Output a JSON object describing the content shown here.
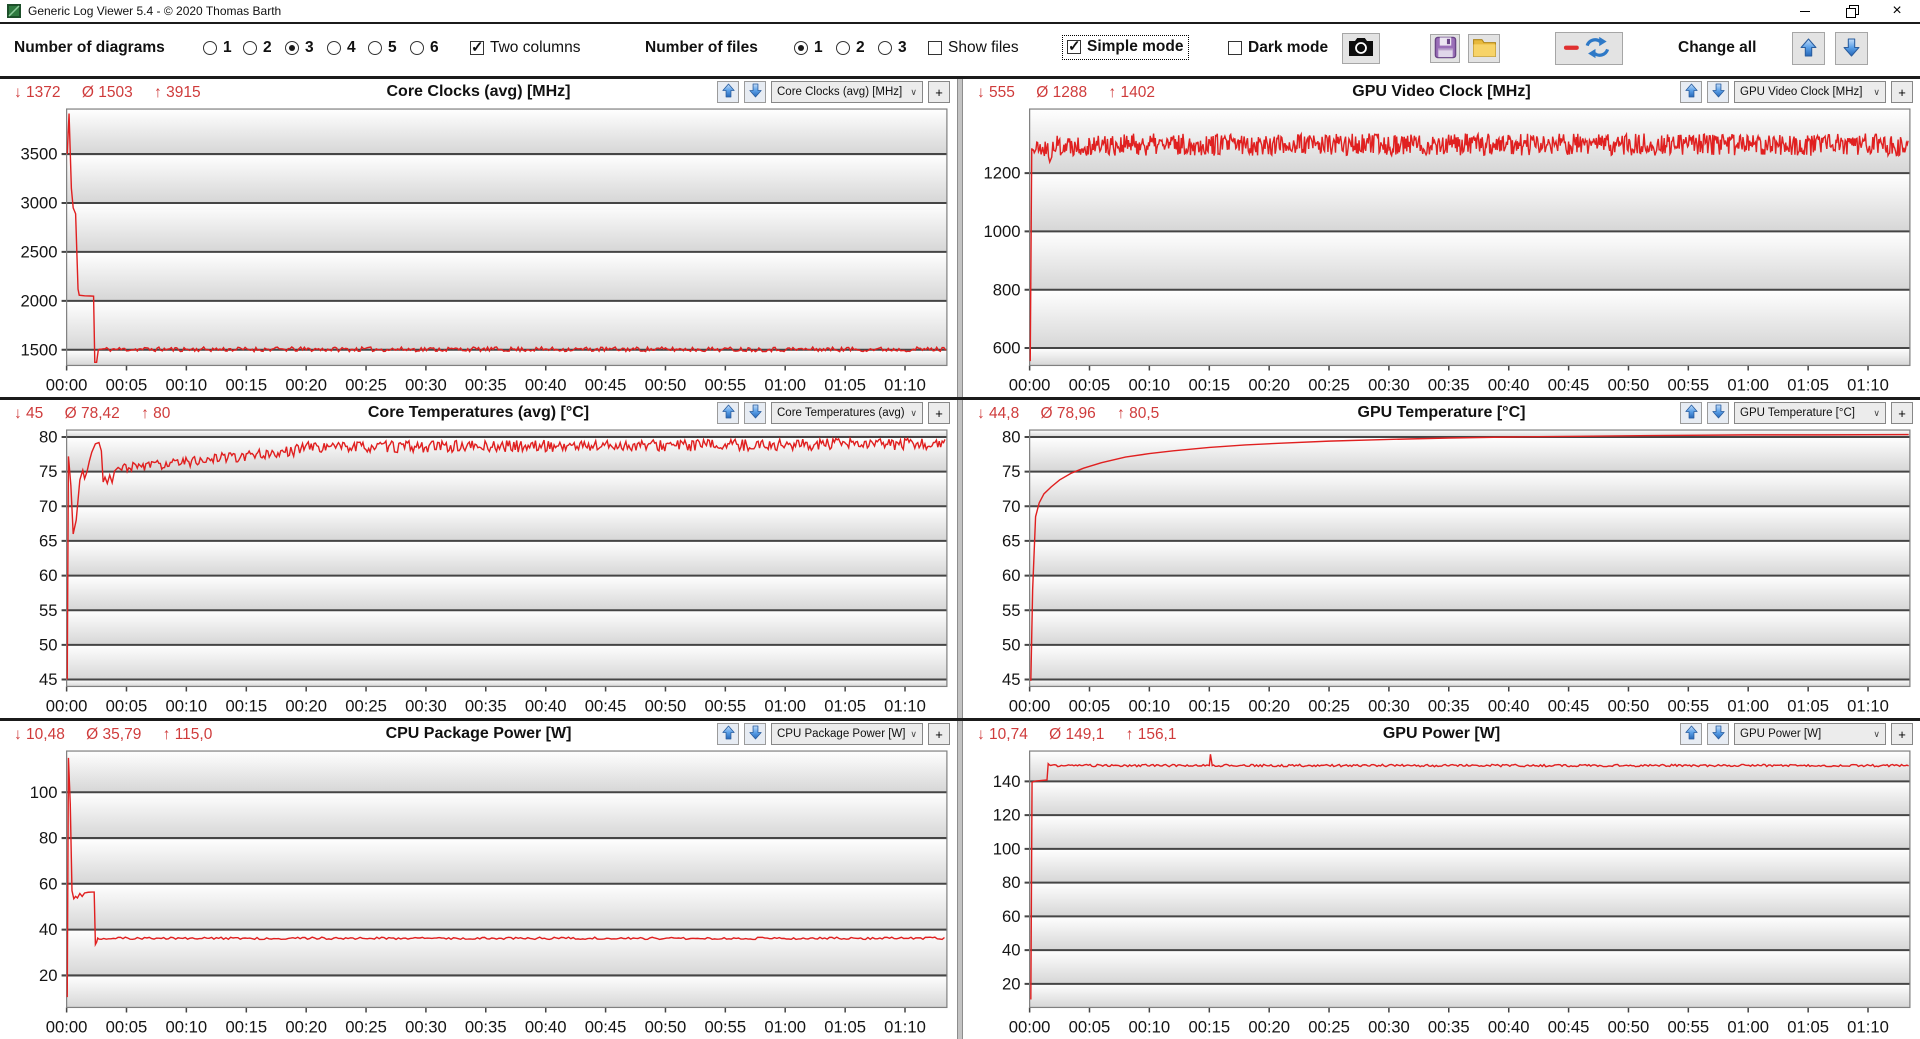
{
  "window": {
    "title": "Generic Log Viewer 5.4 - © 2020 Thomas Barth"
  },
  "icons": {
    "chevron_down": "∨",
    "plus": "+",
    "close": "×"
  },
  "colors": {
    "stat_red": "#cf3b3b",
    "series_red": "#e02020",
    "gridline": "#454545",
    "band_gray": "#d6d6d6",
    "arrow_blue": "#2e79c7",
    "separator": "#1b1b1b"
  },
  "toolbar": {
    "diagrams_label": "Number of diagrams",
    "diagram_options": [
      "1",
      "2",
      "3",
      "4",
      "5",
      "6"
    ],
    "diagrams_selected": "3",
    "two_columns_label": "Two columns",
    "two_columns_checked": true,
    "files_label": "Number of files",
    "file_options": [
      "1",
      "2",
      "3"
    ],
    "files_selected": "1",
    "show_files_label": "Show files",
    "show_files_checked": false,
    "simple_mode_label": "Simple mode",
    "simple_mode_checked": true,
    "dark_mode_label": "Dark mode",
    "dark_mode_checked": false,
    "change_all_label": "Change all"
  },
  "time_labels": [
    "00:00",
    "00:05",
    "00:10",
    "00:15",
    "00:20",
    "00:25",
    "00:30",
    "00:35",
    "00:40",
    "00:45",
    "00:50",
    "00:55",
    "01:00",
    "01:05",
    "01:10"
  ],
  "chart_data": [
    {
      "type": "line",
      "title": "Core Clocks (avg) [MHz]",
      "dropdown": "Core Clocks (avg) [MHz]",
      "stats": {
        "min": "↓ 1372",
        "avg": "Ø 1503",
        "max": "↑ 3915"
      },
      "series_color": "#e02020",
      "xlim": [
        0,
        73.5
      ],
      "ylim": [
        1340,
        3960
      ],
      "yticks": [
        1500,
        2000,
        2500,
        3000,
        3500
      ],
      "segments": [
        {
          "pts": [
            [
              0.05,
              3500
            ],
            [
              0.2,
              3915
            ],
            [
              0.4,
              3150
            ],
            [
              0.55,
              2950
            ],
            [
              0.75,
              2890
            ],
            [
              0.95,
              2120
            ],
            [
              1.05,
              2058
            ],
            [
              1.5,
              2052
            ],
            [
              2.0,
              2050
            ],
            [
              2.25,
              2048
            ],
            [
              2.35,
              1372
            ],
            [
              2.5,
              1372
            ],
            [
              2.65,
              1500
            ]
          ]
        },
        {
          "noise": {
            "from": 2.75,
            "to": 73.4,
            "step": 0.15,
            "base": 1505,
            "amp": 24,
            "seed": 11
          }
        }
      ]
    },
    {
      "type": "line",
      "title": "GPU Video Clock [MHz]",
      "dropdown": "GPU Video Clock [MHz]",
      "stats": {
        "min": "↓ 555",
        "avg": "Ø 1288",
        "max": "↑ 1402"
      },
      "series_color": "#e02020",
      "xlim": [
        0,
        73.5
      ],
      "ylim": [
        540,
        1420
      ],
      "yticks": [
        600,
        800,
        1000,
        1200
      ],
      "segments": [
        {
          "pts": [
            [
              0.05,
              555
            ],
            [
              0.18,
              1285
            ]
          ]
        },
        {
          "noise": {
            "from": 0.25,
            "to": 1.6,
            "step": 0.07,
            "base": 1283,
            "amp": 30,
            "seed": 21
          }
        },
        {
          "pts": [
            [
              1.68,
              1238
            ],
            [
              1.85,
              1255
            ]
          ]
        },
        {
          "noise": {
            "from": 1.95,
            "to": 73.4,
            "step": 0.07,
            "base": 1298,
            "amp": 38,
            "seed": 22
          }
        }
      ]
    },
    {
      "type": "line",
      "title": "Core Temperatures (avg) [°C]",
      "dropdown": "Core Temperatures (avg) [°C]",
      "stats": {
        "min": "↓ 45",
        "avg": "Ø 78,42",
        "max": "↑ 80"
      },
      "series_color": "#e02020",
      "xlim": [
        0,
        73.5
      ],
      "ylim": [
        44,
        81
      ],
      "yticks": [
        45,
        50,
        55,
        60,
        65,
        70,
        75,
        80
      ],
      "segments": [
        {
          "pts": [
            [
              0.05,
              45
            ],
            [
              0.15,
              77.2
            ],
            [
              0.35,
              73
            ],
            [
              0.55,
              66
            ],
            [
              0.8,
              68
            ],
            [
              1.1,
              73.8
            ],
            [
              1.35,
              75.2
            ],
            [
              1.5,
              74
            ],
            [
              1.7,
              75
            ],
            [
              1.9,
              76.5
            ],
            [
              2.1,
              77.8
            ],
            [
              2.4,
              79
            ],
            [
              2.7,
              79.2
            ],
            [
              2.9,
              78
            ],
            [
              3.05,
              73.5
            ],
            [
              3.2,
              74.2
            ],
            [
              3.4,
              73.3
            ],
            [
              3.6,
              74.5
            ],
            [
              3.8,
              73.4
            ],
            [
              4.0,
              75.1
            ],
            [
              4.3,
              75.6
            ],
            [
              4.6,
              75.2
            ]
          ]
        },
        {
          "noise": {
            "from": 4.7,
            "to": 9.5,
            "step": 0.12,
            "base_start": 75.6,
            "base_end": 76.2,
            "amp": 0.7,
            "seed": 31
          }
        },
        {
          "noise": {
            "from": 9.6,
            "to": 19.0,
            "step": 0.12,
            "base_start": 76.4,
            "base_end": 77.9,
            "amp": 0.8,
            "seed": 32
          }
        },
        {
          "noise": {
            "from": 19.1,
            "to": 73.4,
            "step": 0.12,
            "base_start": 78.5,
            "base_end": 79.0,
            "amp": 0.85,
            "seed": 33
          }
        }
      ]
    },
    {
      "type": "line",
      "title": "GPU Temperature [°C]",
      "dropdown": "GPU Temperature [°C]",
      "stats": {
        "min": "↓ 44,8",
        "avg": "Ø 78,96",
        "max": "↑ 80,5"
      },
      "series_color": "#e02020",
      "xlim": [
        0,
        73.5
      ],
      "ylim": [
        44,
        81
      ],
      "yticks": [
        45,
        50,
        55,
        60,
        65,
        70,
        75,
        80
      ],
      "segments": [
        {
          "pts": [
            [
              0.1,
              44.8
            ],
            [
              0.25,
              58
            ],
            [
              0.5,
              68.5
            ],
            [
              0.8,
              70.5
            ],
            [
              1.2,
              71.8
            ],
            [
              1.8,
              72.8
            ],
            [
              2.5,
              73.8
            ],
            [
              3.5,
              74.8
            ],
            [
              4.5,
              75.5
            ],
            [
              6,
              76.3
            ],
            [
              8,
              77.1
            ],
            [
              10,
              77.6
            ],
            [
              12,
              78.0
            ],
            [
              15,
              78.5
            ],
            [
              18,
              78.85
            ],
            [
              21,
              79.1
            ],
            [
              25,
              79.4
            ],
            [
              30,
              79.65
            ],
            [
              35,
              79.85
            ],
            [
              40,
              80.0
            ],
            [
              46,
              80.1
            ],
            [
              52,
              80.2
            ],
            [
              60,
              80.3
            ],
            [
              66,
              80.3
            ],
            [
              73.4,
              80.35
            ]
          ]
        }
      ]
    },
    {
      "type": "line",
      "title": "CPU Package Power [W]",
      "dropdown": "CPU Package Power [W]",
      "stats": {
        "min": "↓ 10,48",
        "avg": "Ø 35,79",
        "max": "↑ 115,0"
      },
      "series_color": "#e02020",
      "xlim": [
        0,
        73.5
      ],
      "ylim": [
        6,
        118
      ],
      "yticks": [
        20,
        40,
        60,
        80,
        100
      ],
      "segments": [
        {
          "pts": [
            [
              0.05,
              10.5
            ],
            [
              0.15,
              115
            ],
            [
              0.3,
              95
            ],
            [
              0.45,
              57
            ],
            [
              0.6,
              53.5
            ],
            [
              0.75,
              54.5
            ],
            [
              0.9,
              53.8
            ],
            [
              1.1,
              55.8
            ],
            [
              1.3,
              54.5
            ],
            [
              1.5,
              56
            ],
            [
              1.8,
              56.3
            ],
            [
              2.1,
              56.4
            ],
            [
              2.3,
              56.4
            ],
            [
              2.4,
              33.5
            ],
            [
              2.5,
              34.5
            ],
            [
              2.6,
              36.3
            ]
          ]
        },
        {
          "noise": {
            "from": 2.7,
            "to": 73.4,
            "step": 0.2,
            "base": 36.2,
            "amp": 0.5,
            "seed": 51
          }
        }
      ]
    },
    {
      "type": "line",
      "title": "GPU Power [W]",
      "dropdown": "GPU Power [W]",
      "stats": {
        "min": "↓ 10,74",
        "avg": "Ø 149,1",
        "max": "↑ 156,1"
      },
      "series_color": "#e02020",
      "xlim": [
        0,
        73.5
      ],
      "ylim": [
        6,
        158
      ],
      "yticks": [
        20,
        40,
        60,
        80,
        100,
        120,
        140
      ],
      "segments": [
        {
          "pts": [
            [
              0.1,
              10.7
            ],
            [
              0.2,
              139.5
            ],
            [
              0.5,
              140.2
            ],
            [
              1.0,
              140.5
            ],
            [
              1.45,
              140.8
            ],
            [
              1.55,
              150.5
            ],
            [
              1.65,
              149.8
            ]
          ]
        },
        {
          "noise": {
            "from": 1.75,
            "to": 14.9,
            "step": 0.15,
            "base": 149.4,
            "amp": 0.7,
            "seed": 61
          }
        },
        {
          "pts": [
            [
              15.0,
              149.4
            ],
            [
              15.1,
              156.1
            ],
            [
              15.25,
              149.4
            ]
          ]
        },
        {
          "noise": {
            "from": 15.35,
            "to": 73.4,
            "step": 0.15,
            "base": 149.4,
            "amp": 0.7,
            "seed": 62
          }
        }
      ]
    }
  ]
}
